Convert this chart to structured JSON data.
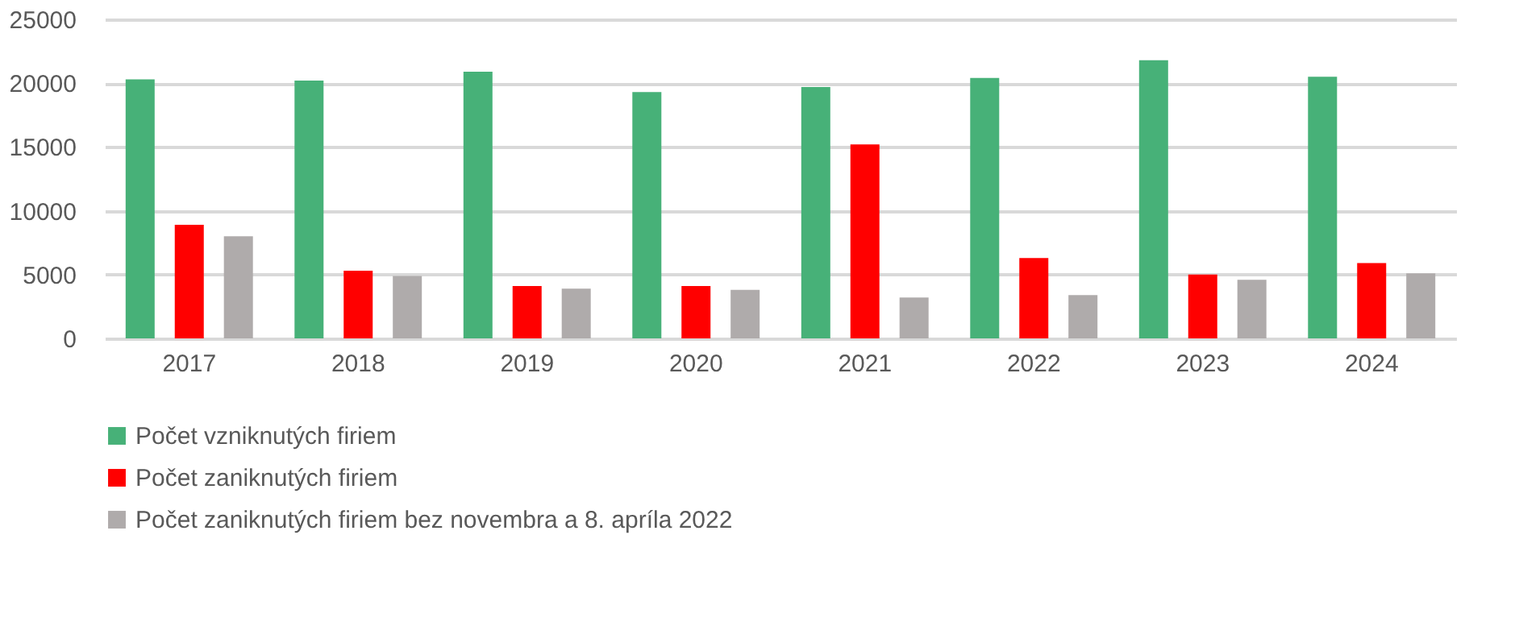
{
  "chart_data": {
    "type": "bar",
    "categories": [
      "2017",
      "2018",
      "2019",
      "2020",
      "2021",
      "2022",
      "2023",
      "2024"
    ],
    "series": [
      {
        "name": "Počet vzniknutých firiem",
        "color": "#47b178",
        "values": [
          20300,
          20200,
          20900,
          19300,
          19700,
          20400,
          21800,
          20500
        ]
      },
      {
        "name": "Počet zaniknutých firiem",
        "color": "#ff0000",
        "values": [
          8900,
          5300,
          4100,
          4100,
          15200,
          6300,
          5000,
          5900
        ]
      },
      {
        "name": "Počet zaniknutých firiem bez novembra a 8. apríla 2022",
        "color": "#afabab",
        "values": [
          8000,
          4900,
          3900,
          3800,
          3200,
          3400,
          4600,
          5100
        ]
      }
    ],
    "ylim": [
      0,
      25000
    ],
    "yticks": [
      0,
      5000,
      10000,
      15000,
      20000,
      25000
    ],
    "grid": "y",
    "legend": "bottom"
  }
}
